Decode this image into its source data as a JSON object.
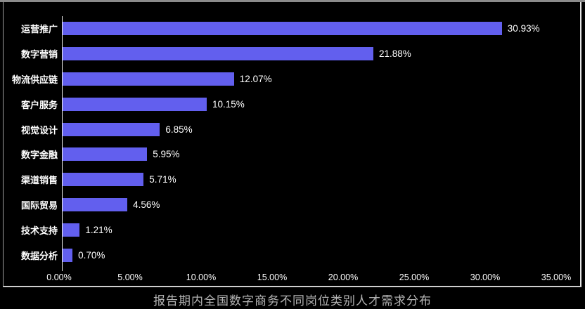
{
  "chart_data": {
    "type": "bar",
    "orientation": "horizontal",
    "title": "报告期内全国数字商务不同岗位类别人才需求分布",
    "categories": [
      "运营推广",
      "数字营销",
      "物流供应链",
      "客户服务",
      "视觉设计",
      "数字金融",
      "渠道销售",
      "国际贸易",
      "技术支持",
      "数据分析"
    ],
    "values": [
      30.93,
      21.88,
      12.07,
      10.15,
      6.85,
      5.95,
      5.71,
      4.56,
      1.21,
      0.7
    ],
    "value_labels": [
      "30.93%",
      "21.88%",
      "12.07%",
      "10.15%",
      "6.85%",
      "5.95%",
      "5.71%",
      "4.56%",
      "1.21%",
      "0.70%"
    ],
    "xlabel": "",
    "ylabel": "",
    "xlim": [
      0,
      35
    ],
    "x_ticks": [
      "0.00%",
      "5.00%",
      "10.00%",
      "15.00%",
      "20.00%",
      "25.00%",
      "30.00%",
      "35.00%"
    ],
    "x_tick_values": [
      0,
      5,
      10,
      15,
      20,
      25,
      30,
      35
    ],
    "grid": false,
    "legend": false,
    "title_position": "bottom",
    "colors": {
      "bar": "#625fee",
      "background": "#000000",
      "label_text": "#ffffff",
      "axis_line": "#ededed",
      "title_text": "#b3b3b3",
      "frame_border": "#cfcfcf",
      "top_rule": "#8b8b8b"
    }
  }
}
